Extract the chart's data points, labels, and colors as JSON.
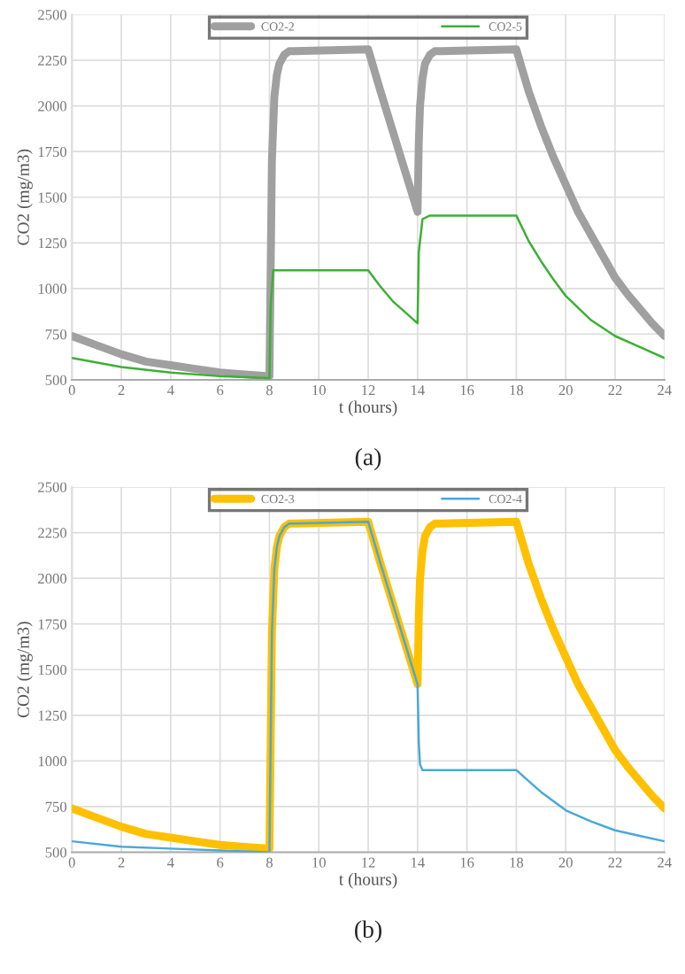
{
  "chart_data": [
    {
      "type": "line",
      "xlabel": "t (hours)",
      "ylabel": "CO2 (mg/m3)",
      "xlim": [
        0,
        24
      ],
      "xticks": [
        0,
        2,
        4,
        6,
        8,
        10,
        12,
        14,
        16,
        18,
        20,
        22,
        24
      ],
      "ylim": [
        500,
        2500
      ],
      "yticks": [
        500,
        750,
        1000,
        1250,
        1500,
        1750,
        2000,
        2250,
        2500
      ],
      "grid": true,
      "legend": "top",
      "annotations": [
        "(a)"
      ],
      "series": [
        {
          "name": "CO2-2",
          "color": "#a0a0a0",
          "x": [
            0,
            1,
            2,
            3,
            4,
            5,
            6,
            7,
            8,
            8.05,
            8.1,
            8.2,
            8.3,
            8.4,
            8.6,
            8.8,
            9,
            12,
            12.5,
            13,
            13.5,
            14,
            14.05,
            14.1,
            14.2,
            14.3,
            14.5,
            14.7,
            15,
            18,
            18.5,
            19,
            19.5,
            20,
            20.5,
            21,
            21.5,
            22,
            22.5,
            23,
            23.5,
            24
          ],
          "values": [
            740,
            690,
            640,
            600,
            580,
            560,
            540,
            530,
            520,
            1100,
            1700,
            2050,
            2170,
            2230,
            2280,
            2300,
            2300,
            2310,
            2080,
            1860,
            1640,
            1420,
            1800,
            2000,
            2150,
            2230,
            2280,
            2300,
            2300,
            2310,
            2080,
            1890,
            1720,
            1570,
            1420,
            1300,
            1180,
            1060,
            970,
            890,
            810,
            740
          ]
        },
        {
          "name": "CO2-5",
          "color": "#3cb034",
          "x": [
            0,
            2,
            4,
            6,
            8,
            8.05,
            8.15,
            12,
            12.5,
            13,
            13.5,
            14,
            14.05,
            14.2,
            14.5,
            18,
            18.5,
            19,
            19.5,
            20,
            21,
            22,
            23,
            24
          ],
          "values": [
            620,
            570,
            540,
            520,
            510,
            900,
            1100,
            1100,
            1010,
            930,
            870,
            810,
            1200,
            1380,
            1400,
            1400,
            1260,
            1150,
            1050,
            960,
            830,
            740,
            680,
            620
          ]
        }
      ]
    },
    {
      "type": "line",
      "xlabel": "t (hours)",
      "ylabel": "CO2 (mg/m3)",
      "xlim": [
        0,
        24
      ],
      "xticks": [
        0,
        2,
        4,
        6,
        8,
        10,
        12,
        14,
        16,
        18,
        20,
        22,
        24
      ],
      "ylim": [
        500,
        2500
      ],
      "yticks": [
        500,
        750,
        1000,
        1250,
        1500,
        1750,
        2000,
        2250,
        2500
      ],
      "grid": true,
      "legend": "top",
      "annotations": [
        "(b)"
      ],
      "series": [
        {
          "name": "CO2-3",
          "color": "#ffc000",
          "x": [
            0,
            1,
            2,
            3,
            4,
            5,
            6,
            7,
            8,
            8.05,
            8.1,
            8.2,
            8.3,
            8.4,
            8.6,
            8.8,
            9,
            12,
            12.5,
            13,
            13.5,
            14,
            14.05,
            14.1,
            14.2,
            14.3,
            14.5,
            14.7,
            15,
            18,
            18.5,
            19,
            19.5,
            20,
            20.5,
            21,
            21.5,
            22,
            22.5,
            23,
            23.5,
            24
          ],
          "values": [
            740,
            690,
            640,
            600,
            580,
            560,
            540,
            530,
            520,
            1100,
            1700,
            2050,
            2170,
            2230,
            2280,
            2300,
            2300,
            2310,
            2080,
            1860,
            1640,
            1420,
            1800,
            2000,
            2150,
            2230,
            2280,
            2300,
            2300,
            2310,
            2080,
            1890,
            1720,
            1570,
            1420,
            1300,
            1180,
            1060,
            970,
            890,
            810,
            740
          ]
        },
        {
          "name": "CO2-4",
          "color": "#4aa8d8",
          "x": [
            0,
            2,
            4,
            6,
            8,
            8.05,
            8.1,
            8.2,
            8.3,
            8.4,
            8.6,
            8.8,
            9,
            12,
            12.5,
            13,
            13.5,
            14,
            14.05,
            14.1,
            14.2,
            18,
            18.5,
            19,
            19.5,
            20,
            21,
            22,
            23,
            24
          ],
          "values": [
            560,
            530,
            520,
            510,
            500,
            1100,
            1700,
            2050,
            2170,
            2230,
            2280,
            2300,
            2300,
            2310,
            2080,
            1860,
            1640,
            1420,
            1100,
            980,
            950,
            950,
            890,
            830,
            780,
            730,
            670,
            620,
            590,
            560
          ]
        }
      ]
    }
  ]
}
